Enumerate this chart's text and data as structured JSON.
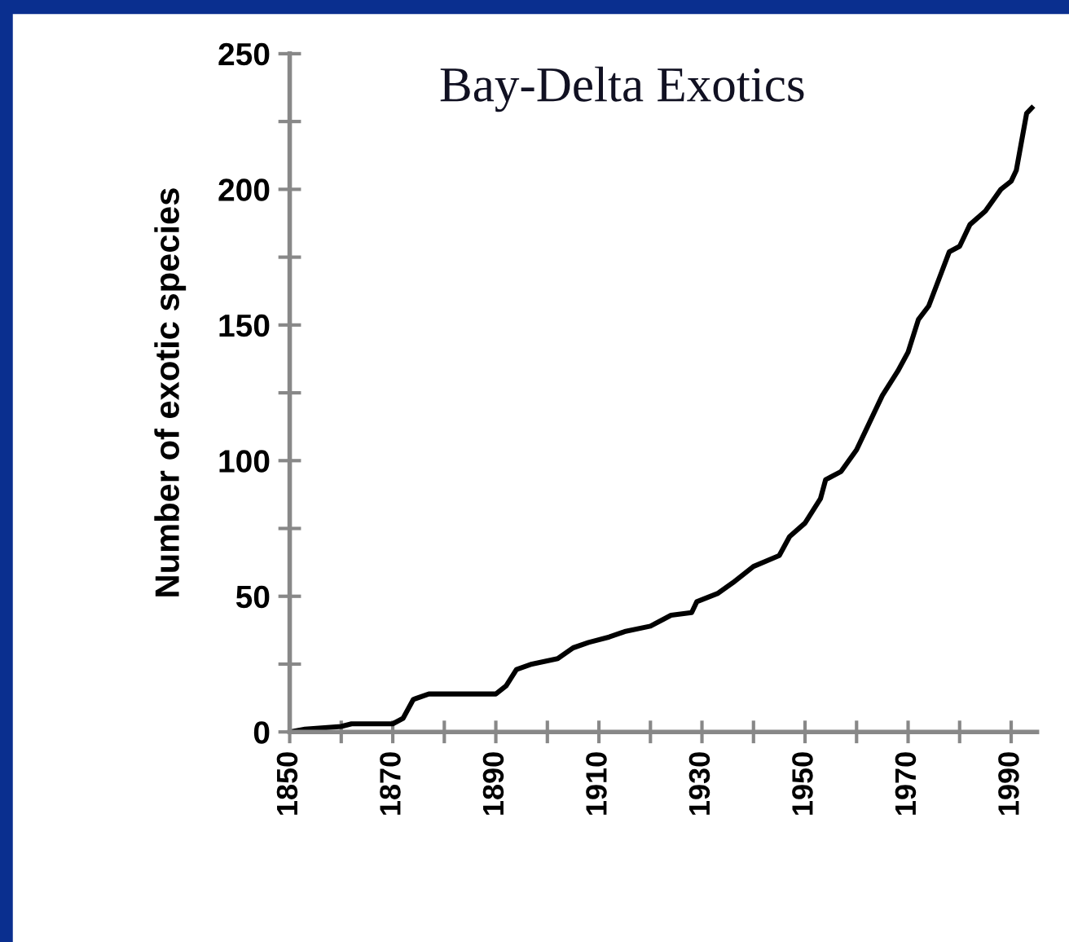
{
  "chart_data": {
    "type": "line",
    "title": "Bay-Delta Exotics",
    "ylabel": "Number of exotic species",
    "x": [
      1850,
      1853,
      1860,
      1862,
      1870,
      1872,
      1874,
      1877,
      1890,
      1892,
      1894,
      1897,
      1902,
      1905,
      1908,
      1912,
      1915,
      1920,
      1924,
      1928,
      1929,
      1933,
      1936,
      1940,
      1945,
      1947,
      1950,
      1953,
      1954,
      1957,
      1960,
      1962,
      1965,
      1968,
      1970,
      1972,
      1974,
      1976,
      1978,
      1980,
      1982,
      1985,
      1988,
      1990,
      1991,
      1993,
      1994
    ],
    "series": [
      {
        "color": "#000000",
        "values": [
          0,
          1,
          2,
          3,
          3,
          5,
          12,
          14,
          14,
          17,
          23,
          25,
          27,
          31,
          33,
          35,
          37,
          39,
          43,
          44,
          48,
          51,
          55,
          61,
          65,
          72,
          77,
          86,
          93,
          96,
          104,
          112,
          124,
          133,
          140,
          152,
          157,
          167,
          177,
          179,
          187,
          192,
          200,
          203,
          207,
          228,
          230
        ]
      }
    ],
    "xlim": [
      1850,
      1995
    ],
    "ylim": [
      0,
      250
    ],
    "xticks": [
      1850,
      {
        "value": 1860,
        "label": null
      },
      1870,
      {
        "value": 1880,
        "label": null
      },
      1890,
      {
        "value": 1900,
        "label": null
      },
      1910,
      {
        "value": 1920,
        "label": null
      },
      1930,
      {
        "value": 1940,
        "label": null
      },
      1950,
      {
        "value": 1960,
        "label": null
      },
      1970,
      {
        "value": 1980,
        "label": null
      },
      1990
    ],
    "yticks": [
      0,
      {
        "value": 25,
        "label": null
      },
      50,
      {
        "value": 75,
        "label": null
      },
      100,
      {
        "value": 125,
        "label": null
      },
      150,
      {
        "value": 175,
        "label": null
      },
      200,
      {
        "value": 225,
        "label": null
      },
      250
    ],
    "grid": false,
    "legend": false,
    "marker": "none",
    "line_style": "solid"
  }
}
